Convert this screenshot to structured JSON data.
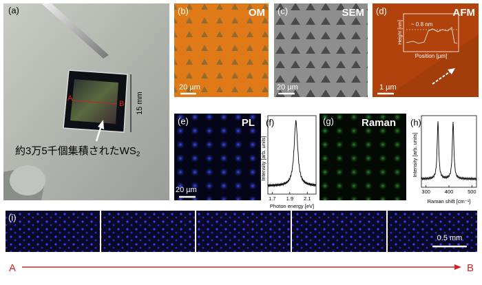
{
  "panels": {
    "a": {
      "label": "(a)",
      "scale": "15 mm",
      "marker_a": "A",
      "marker_b": "B",
      "caption": "約3万5千個集積されたWS",
      "caption_sub": "2"
    },
    "b": {
      "label": "(b)",
      "title": "OM",
      "scale": "20 µm"
    },
    "c": {
      "label": "(c)",
      "title": "SEM",
      "scale": "20 µm"
    },
    "d": {
      "label": "(d)",
      "title": "AFM",
      "scale": "1 µm",
      "inset_y_label": "Height [nm]",
      "inset_x_label": "Position [µm]",
      "inset_annotation": "~ 0.8 nm"
    },
    "e": {
      "label": "(e)",
      "title": "PL",
      "scale": "20 µm"
    },
    "f": {
      "label": "(f)",
      "y_label": "Intensity [arb. units]",
      "x_label": "Photon energy [eV]",
      "xlim": [
        1.65,
        2.2
      ],
      "xticks": [
        1.7,
        1.9,
        2.1
      ],
      "peaks": [
        1.97
      ]
    },
    "g": {
      "label": "(g)",
      "title": "Raman"
    },
    "h": {
      "label": "(h)",
      "y_label": "Intensity [arb. units]",
      "x_label": "Raman shift [cm⁻¹]",
      "xlim": [
        280,
        520
      ],
      "xticks": [
        300,
        400,
        500
      ],
      "peaks": [
        352,
        418
      ]
    },
    "i": {
      "label": "(i)",
      "scale": "0.5 mm"
    },
    "arrow": {
      "start": "A",
      "end": "B"
    }
  }
}
